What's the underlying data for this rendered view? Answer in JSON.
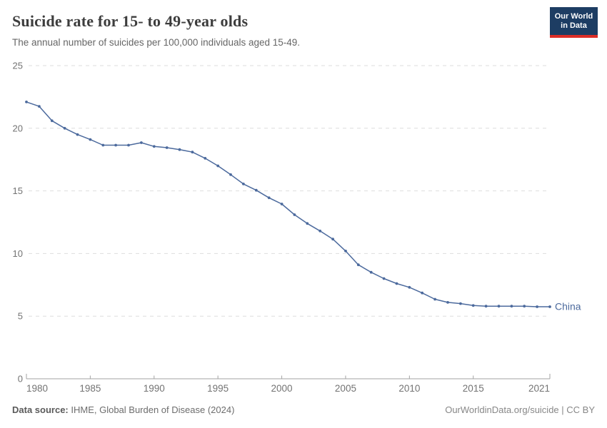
{
  "header": {
    "title": "Suicide rate for 15- to 49-year olds",
    "subtitle": "The annual number of suicides per 100,000 individuals aged 15-49.",
    "logo": {
      "line1": "Our World",
      "line2": "in Data",
      "bg_color": "#1d3d63",
      "accent_color": "#dc2e27"
    }
  },
  "chart_data": {
    "type": "line",
    "title": "Suicide rate for 15- to 49-year olds",
    "xlabel": "",
    "ylabel": "",
    "ylim": [
      0,
      25
    ],
    "yticks": [
      0,
      5,
      10,
      15,
      20,
      25
    ],
    "xticks": [
      1980,
      1985,
      1990,
      1995,
      2000,
      2005,
      2010,
      2015,
      2021
    ],
    "xlim": [
      1980,
      2021
    ],
    "grid": "horizontal-dashed",
    "legend_position": "end-of-line-label",
    "series": [
      {
        "name": "China",
        "color": "#4c6a9d",
        "x": [
          1980,
          1981,
          1982,
          1983,
          1984,
          1985,
          1986,
          1987,
          1988,
          1989,
          1990,
          1991,
          1992,
          1993,
          1994,
          1995,
          1996,
          1997,
          1998,
          1999,
          2000,
          2001,
          2002,
          2003,
          2004,
          2005,
          2006,
          2007,
          2008,
          2009,
          2010,
          2011,
          2012,
          2013,
          2014,
          2015,
          2016,
          2017,
          2018,
          2019,
          2020,
          2021
        ],
        "values": [
          22.1,
          21.75,
          20.6,
          20.0,
          19.5,
          19.1,
          18.65,
          18.65,
          18.65,
          18.85,
          18.55,
          18.45,
          18.3,
          18.1,
          17.6,
          17.0,
          16.3,
          15.55,
          15.05,
          14.45,
          13.95,
          13.1,
          12.4,
          11.8,
          11.15,
          10.2,
          9.1,
          8.5,
          8.0,
          7.6,
          7.3,
          6.85,
          6.35,
          6.1,
          6.0,
          5.85,
          5.8,
          5.8,
          5.8,
          5.8,
          5.75,
          5.75
        ]
      }
    ],
    "colors": {
      "gridline": "#dddddd",
      "axis": "#a3a3a3",
      "tick_label": "#737373"
    }
  },
  "footer": {
    "datasource_label": "Data source:",
    "datasource_value": " IHME, Global Burden of Disease (2024)",
    "attribution": "OurWorldinData.org/suicide | CC BY"
  }
}
